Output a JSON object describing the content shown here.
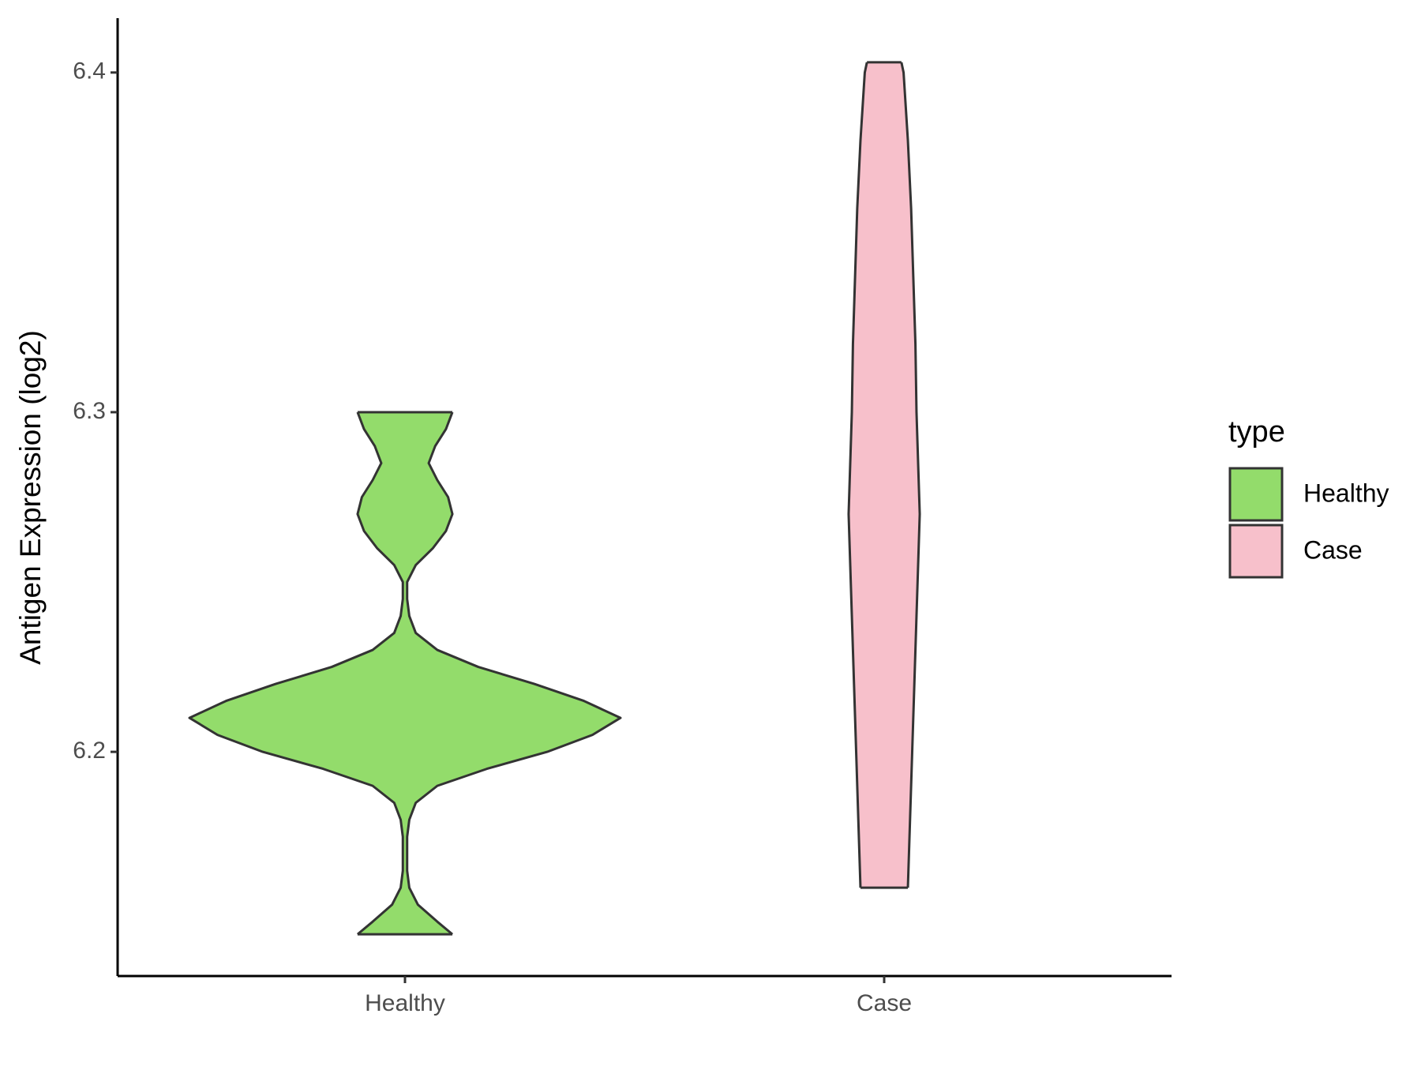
{
  "chart_data": {
    "type": "violin",
    "y_label": "Antigen Expression (log2)",
    "legend_title": "type",
    "categories": [
      "Healthy",
      "Case"
    ],
    "ylim": [
      6.134,
      6.416
    ],
    "yticks": [
      6.2,
      6.3,
      6.4
    ],
    "series": [
      {
        "name": "Healthy",
        "color": "#93dc6b",
        "y": [
          6.1463,
          6.15,
          6.155,
          6.16,
          6.165,
          6.17,
          6.175,
          6.18,
          6.185,
          6.19,
          6.195,
          6.2,
          6.205,
          6.21,
          6.215,
          6.22,
          6.225,
          6.23,
          6.235,
          6.24,
          6.245,
          6.25,
          6.255,
          6.26,
          6.265,
          6.27,
          6.275,
          6.28,
          6.285,
          6.29,
          6.295,
          6.3
        ],
        "density": [
          0.22,
          0.15,
          0.06,
          0.02,
          0.01,
          0.01,
          0.01,
          0.02,
          0.05,
          0.15,
          0.38,
          0.66,
          0.87,
          1.0,
          0.83,
          0.6,
          0.34,
          0.15,
          0.05,
          0.02,
          0.01,
          0.01,
          0.05,
          0.13,
          0.19,
          0.22,
          0.2,
          0.15,
          0.11,
          0.14,
          0.19,
          0.22
        ]
      },
      {
        "name": "Case",
        "color": "#f7c0cb",
        "y": [
          6.16,
          6.18,
          6.2,
          6.22,
          6.24,
          6.26,
          6.27,
          6.28,
          6.3,
          6.32,
          6.34,
          6.36,
          6.38,
          6.4,
          6.403
        ],
        "density": [
          0.11,
          0.12,
          0.13,
          0.14,
          0.15,
          0.16,
          0.165,
          0.16,
          0.15,
          0.145,
          0.135,
          0.125,
          0.11,
          0.09,
          0.08
        ]
      }
    ]
  }
}
